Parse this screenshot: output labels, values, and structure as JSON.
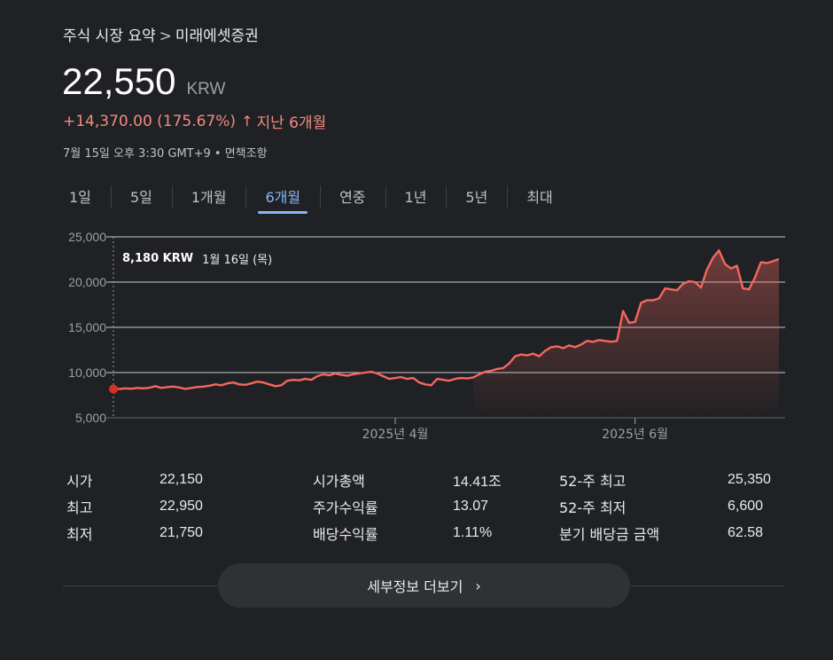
{
  "breadcrumb": {
    "parent": "주식 시장 요약",
    "separator": ">",
    "current": "미래에셋증권"
  },
  "price": {
    "value": "22,550",
    "currency": "KRW"
  },
  "change": {
    "amount": "+14,370.00 (175.67%)",
    "arrow": "↑",
    "period": "지난 6개월"
  },
  "timestamp": "7월 15일 오후 3:30 GMT+9 • 면책조항",
  "tabs": [
    {
      "label": "1일"
    },
    {
      "label": "5일"
    },
    {
      "label": "1개월"
    },
    {
      "label": "6개월",
      "active": true
    },
    {
      "label": "연중"
    },
    {
      "label": "1년"
    },
    {
      "label": "5년"
    },
    {
      "label": "최대"
    }
  ],
  "tooltip": {
    "price": "8,180 KRW",
    "date": "1월 16일 (목)"
  },
  "colors": {
    "line": "#f5675f",
    "accent": "#8ab4f8",
    "change": "#f28b82"
  },
  "chart_data": {
    "type": "area",
    "ylim": [
      5000,
      25000
    ],
    "yticks": [
      "25,000",
      "20,000",
      "15,000",
      "10,000",
      "5,000"
    ],
    "xtick_labels": [
      {
        "label": "2025년 4월",
        "index": 47
      },
      {
        "label": "2025년 6월",
        "index": 87
      }
    ],
    "values": [
      8180,
      8200,
      8250,
      8220,
      8300,
      8250,
      8320,
      8500,
      8300,
      8400,
      8450,
      8350,
      8200,
      8300,
      8400,
      8450,
      8550,
      8700,
      8600,
      8800,
      8900,
      8700,
      8650,
      8800,
      9000,
      8900,
      8700,
      8500,
      8600,
      9100,
      9200,
      9150,
      9300,
      9200,
      9600,
      9800,
      9700,
      9900,
      9750,
      9650,
      9800,
      9900,
      10000,
      10100,
      9900,
      9600,
      9300,
      9400,
      9500,
      9300,
      9400,
      8900,
      8700,
      8600,
      9300,
      9200,
      9100,
      9300,
      9400,
      9350,
      9450,
      9800,
      10100,
      10200,
      10400,
      10500,
      11000,
      11800,
      12000,
      11900,
      12100,
      11800,
      12400,
      12800,
      12900,
      12700,
      13000,
      12800,
      13100,
      13500,
      13400,
      13600,
      13500,
      13400,
      13500,
      16800,
      15500,
      15600,
      17700,
      18000,
      18000,
      18200,
      19300,
      19200,
      19100,
      19800,
      20100,
      20000,
      19400,
      21400,
      22700,
      23500,
      22000,
      21500,
      21800,
      19300,
      19200,
      20500,
      22200,
      22100,
      22300,
      22550
    ]
  },
  "stats": [
    [
      {
        "label": "시가",
        "value": "22,150"
      },
      {
        "label": "최고",
        "value": "22,950"
      },
      {
        "label": "최저",
        "value": "21,750"
      }
    ],
    [
      {
        "label": "시가총액",
        "value": "14.41조"
      },
      {
        "label": "주가수익률",
        "value": "13.07"
      },
      {
        "label": "배당수익률",
        "value": "1.11%"
      }
    ],
    [
      {
        "label": "52-주 최고",
        "value": "25,350"
      },
      {
        "label": "52-주 최저",
        "value": "6,600"
      },
      {
        "label": "분기 배당금 금액",
        "value": "62.58"
      }
    ]
  ],
  "more_button": {
    "label": "세부정보 더보기",
    "chevron": "›"
  }
}
